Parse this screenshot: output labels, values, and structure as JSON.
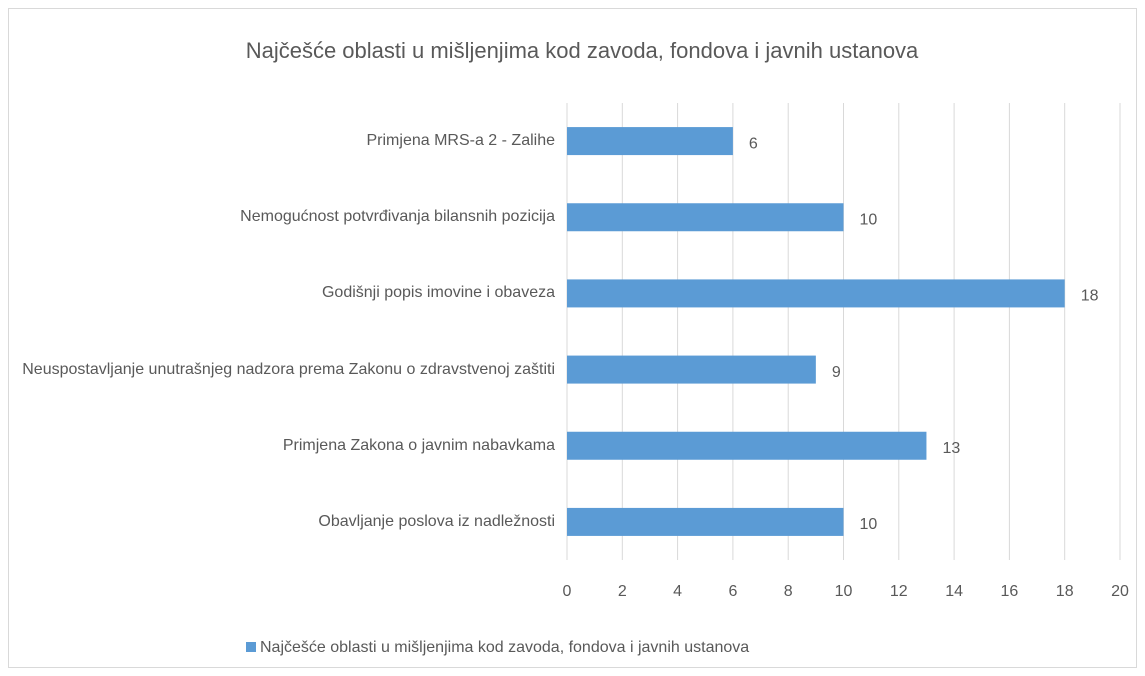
{
  "chart_data": {
    "type": "bar",
    "orientation": "horizontal",
    "title": "Najčešće oblasti u mišljenjima kod zavoda, fondova i javnih ustanova",
    "categories": [
      "Primjena MRS-a 2 - Zalihe",
      "Nemogućnost potvrđivanja bilansnih pozicija",
      "Godišnji popis imovine i obaveza",
      "Neuspostavljanje unutrašnjeg nadzora prema Zakonu o zdravstvenoj zaštiti",
      "Primjena Zakona o javnim nabavkama",
      "Obavljanje poslova iz nadležnosti"
    ],
    "series": [
      {
        "name": "Najčešće oblasti u mišljenjima kod zavoda, fondova i javnih ustanova",
        "color": "#5b9bd5",
        "values": [
          6,
          10,
          18,
          9,
          13,
          10
        ]
      }
    ],
    "xlim": [
      0,
      20
    ],
    "xticks": [
      0,
      2,
      4,
      6,
      8,
      10,
      12,
      14,
      16,
      18,
      20
    ],
    "grid": true,
    "legend": "bottom",
    "data_labels": true
  }
}
